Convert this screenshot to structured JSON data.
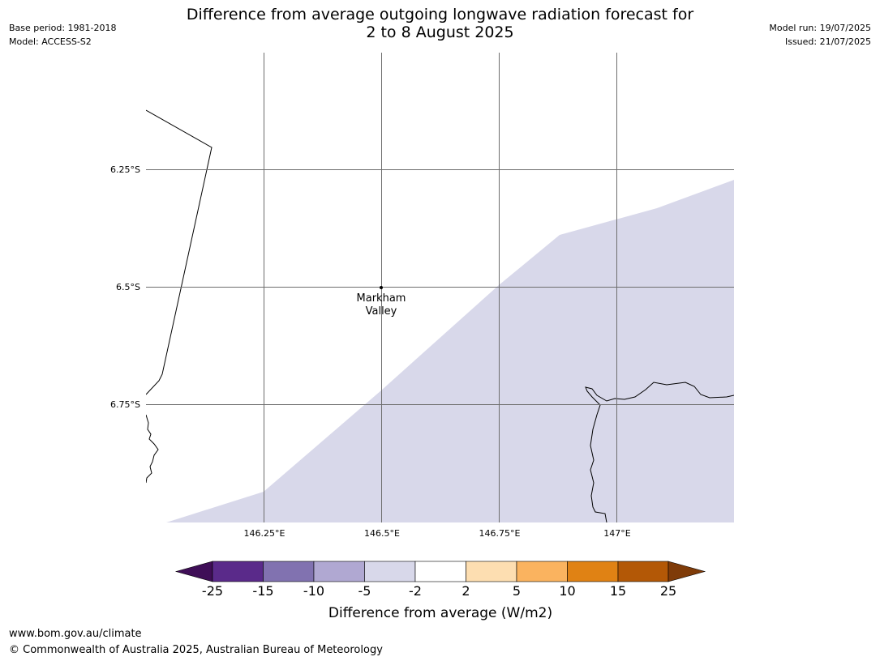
{
  "header": {
    "title_line1": "Difference from average outgoing longwave radiation forecast for",
    "title_line2": "2 to 8 August 2025",
    "base_period": "Base period: 1981-2018",
    "model": "Model: ACCESS-S2",
    "model_run": "Model run: 19/07/2025",
    "issued": "Issued: 21/07/2025"
  },
  "map": {
    "lat_labels": [
      "6.25°S",
      "6.5°S",
      "6.75°S"
    ],
    "lon_labels": [
      "146.25°E",
      "146.5°E",
      "146.75°E",
      "147°E"
    ],
    "place_label_line1": "Markham",
    "place_label_line2": "Valley",
    "shaded_category": "-5 to -2",
    "shade_color": "#d8d8ea"
  },
  "colorbar": {
    "ticks": [
      "-25",
      "-15",
      "-10",
      "-5",
      "-2",
      "2",
      "5",
      "10",
      "15",
      "25"
    ],
    "colors": [
      "#3f0e57",
      "#5a2a8a",
      "#8172b0",
      "#b0a8d2",
      "#d8d8ea",
      "#ffffff",
      "#fddeb1",
      "#fab35f",
      "#e08214",
      "#b35806",
      "#7f3b08"
    ],
    "label": "Difference from average (W/m2)"
  },
  "footer": {
    "url": "www.bom.gov.au/climate",
    "copyright": "© Commonwealth of Australia 2025, Australian Bureau of Meteorology"
  }
}
